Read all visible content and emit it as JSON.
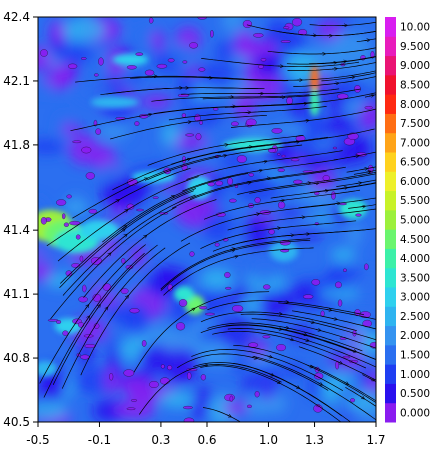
{
  "chart_data": {
    "type": "heatmap",
    "title": "",
    "xlabel": "",
    "ylabel": "",
    "xlim": [
      -0.5,
      1.7
    ],
    "ylim": [
      40.5,
      42.4
    ],
    "x_ticks": [
      "-0.5",
      "-0.1",
      "0.3",
      "0.6",
      "1.0",
      "1.3",
      "1.7"
    ],
    "y_ticks": [
      "40.5",
      "40.8",
      "41.1",
      "41.4",
      "41.8",
      "42.1",
      "42.4"
    ],
    "overlay": "streamlines with arrowheads (wind field)",
    "colorbar": {
      "levels": [
        "0.000",
        "0.500",
        "1.000",
        "1.500",
        "2.000",
        "2.500",
        "3.000",
        "3.500",
        "4.000",
        "4.500",
        "5.000",
        "5.500",
        "6.000",
        "6.500",
        "7.000",
        "7.500",
        "8.000",
        "8.500",
        "9.000",
        "9.500",
        "10.00"
      ],
      "colors": [
        "#8a1cf0",
        "#2a10ee",
        "#1f3ef2",
        "#2b6ff0",
        "#3593f0",
        "#2fb4f0",
        "#2fd0ee",
        "#2ee5d2",
        "#3cf0a8",
        "#6af56e",
        "#9cf03c",
        "#c8f228",
        "#eef02a",
        "#ffd21e",
        "#ffa418",
        "#ff6e14",
        "#ff2a12",
        "#f0122e",
        "#ea1474",
        "#e81cbc",
        "#d81ef0"
      ]
    },
    "regions": [
      {
        "name": "Field mostly low magnitude (0.5–2.0) with purple patches",
        "value": 1.2
      },
      {
        "name": "Band of higher values near lon -0.4, lat 41.4",
        "value": 4.5
      },
      {
        "name": "Streak near lon 1.3, lat 42.1",
        "value": 7.5
      }
    ]
  }
}
